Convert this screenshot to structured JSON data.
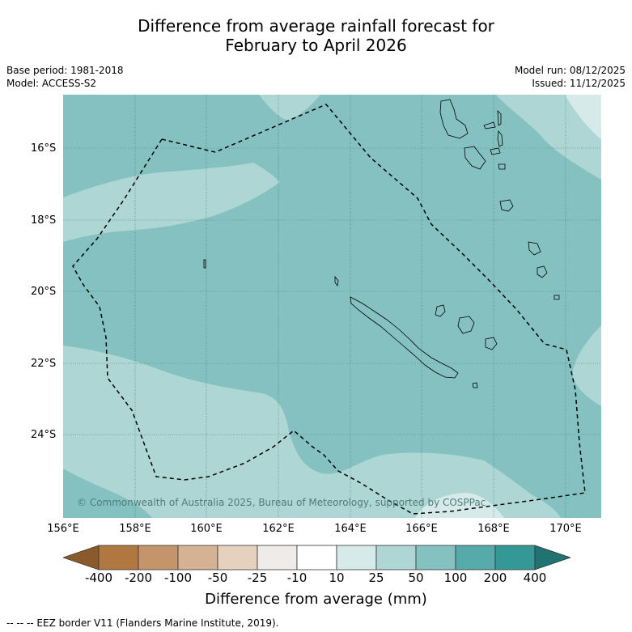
{
  "title_line1": "Difference from average rainfall forecast for",
  "title_line2": "February to April 2026",
  "base_period": "Base period: 1981-2018",
  "model": "Model: ACCESS-S2",
  "model_run": "Model run: 08/12/2025",
  "issued": "Issued: 11/12/2025",
  "latitude_labels": [
    "16°S",
    "18°S",
    "20°S",
    "22°S",
    "24°S"
  ],
  "longitude_labels": [
    "156°E",
    "158°E",
    "160°E",
    "162°E",
    "164°E",
    "166°E",
    "168°E",
    "170°E"
  ],
  "copyright": "© Commonwealth of Australia 2025, Bureau of Meteorology, supported by COSPPac",
  "colorbar": {
    "labels": [
      "-400",
      "-200",
      "-100",
      "-50",
      "-25",
      "-10",
      "10",
      "25",
      "50",
      "100",
      "200",
      "400"
    ],
    "colors": [
      "#8b5a2b",
      "#b07840",
      "#c4956a",
      "#d4b293",
      "#e6d1bf",
      "#efebe8",
      "#ffffff",
      "#d6ebe9",
      "#add6d5",
      "#84c1c0",
      "#56aaaa",
      "#339896",
      "#1f7370"
    ],
    "title": "Difference from average (mm)"
  },
  "footer": "--  --  -- EEZ border V11 (Flanders Marine Institute, 2019).",
  "map_colors": {
    "band_25_50": "#add6d5",
    "band_50_100": "#84c1c0",
    "band_10_25": "#d6ebe9"
  }
}
